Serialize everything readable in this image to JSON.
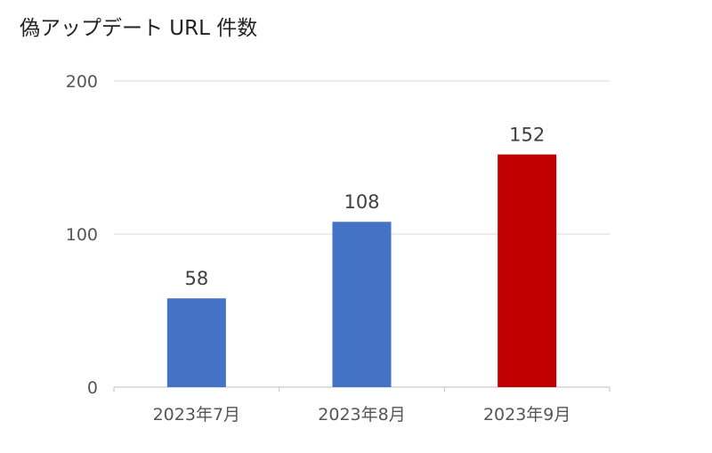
{
  "chart_data": {
    "type": "bar",
    "title": "偽アップデート URL 件数",
    "categories": [
      "2023年7月",
      "2023年8月",
      "2023年9月"
    ],
    "values": [
      58,
      108,
      152
    ],
    "data_labels": [
      "58",
      "108",
      "152"
    ],
    "bar_colors": [
      "#4472c4",
      "#4472c4",
      "#c00000"
    ],
    "ylim": [
      0,
      200
    ],
    "yticks": [
      "0",
      "100",
      "200"
    ],
    "ytick_values": [
      0,
      100,
      200
    ],
    "grid": true,
    "legend": "none"
  }
}
